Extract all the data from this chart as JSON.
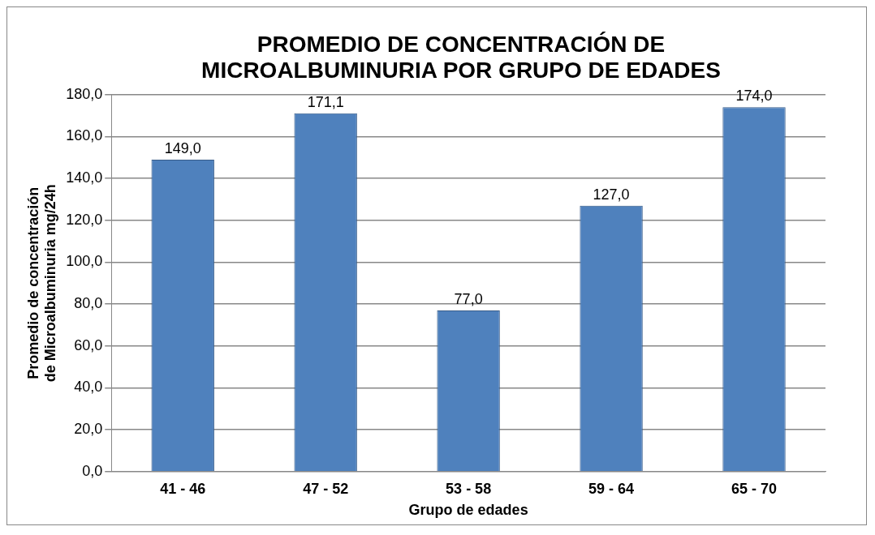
{
  "chart_data": {
    "type": "bar",
    "title": "PROMEDIO DE CONCENTRACIÓN DE MICROALBUMINURIA POR GRUPO DE EDADES",
    "xlabel": "Grupo de edades",
    "ylabel": "Promedio de concentración de Microalbuminuria mg/24h",
    "categories": [
      "41 - 46",
      "47 - 52",
      "53 - 58",
      "59 - 64",
      "65 - 70"
    ],
    "values": [
      149.0,
      171.1,
      77.0,
      127.0,
      174.0
    ],
    "value_labels": [
      "149,0",
      "171,1",
      "77,0",
      "127,0",
      "174,0"
    ],
    "color": "#4f81bd",
    "ylim": [
      0,
      180
    ],
    "yticks": [
      {
        "value": 0,
        "label": "0,0"
      },
      {
        "value": 20,
        "label": "20,0"
      },
      {
        "value": 40,
        "label": "40,0"
      },
      {
        "value": 60,
        "label": "60,0"
      },
      {
        "value": 80,
        "label": "80,0"
      },
      {
        "value": 100,
        "label": "100,0"
      },
      {
        "value": 120,
        "label": "120,0"
      },
      {
        "value": 140,
        "label": "140,0"
      },
      {
        "value": 160,
        "label": "160,0"
      },
      {
        "value": 180,
        "label": "180,0"
      }
    ],
    "grid": "y",
    "legend": false
  }
}
